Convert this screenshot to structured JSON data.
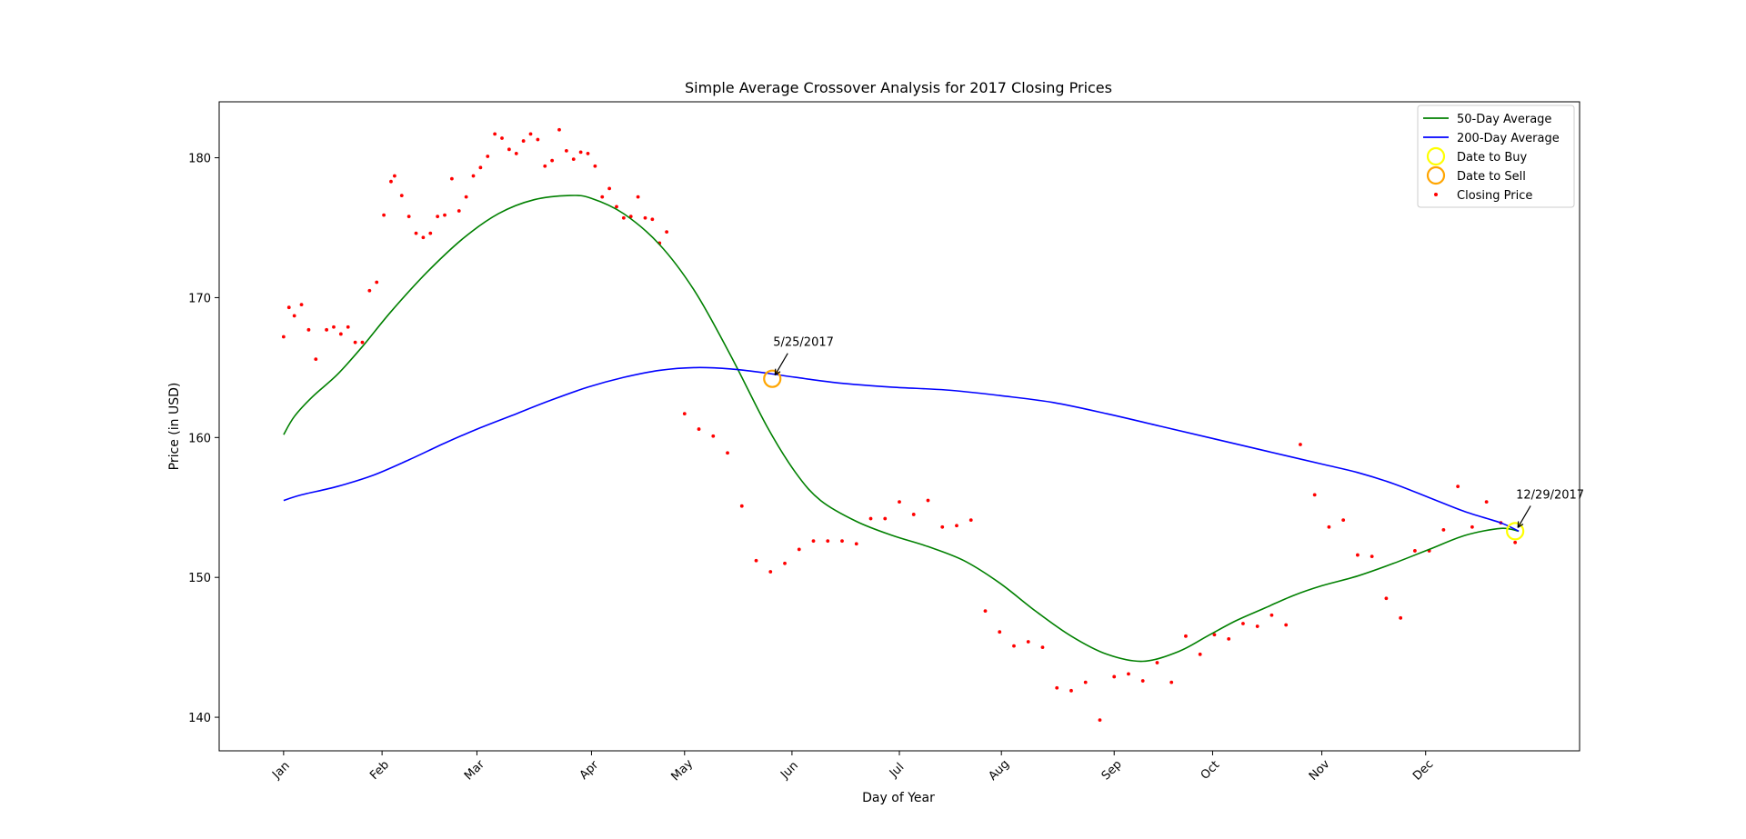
{
  "chart_data": {
    "type": "line",
    "title": "Simple Average Crossover Analysis for 2017 Closing Prices",
    "xlabel": "Day of Year",
    "ylabel": "Price (in USD)",
    "ylim": [
      137.6,
      184.0
    ],
    "xlim": [
      -18,
      362
    ],
    "grid": false,
    "legend_position": "top-right",
    "x_ticks": [
      {
        "label": "Jan",
        "day": 0
      },
      {
        "label": "Feb",
        "day": 27.5
      },
      {
        "label": "Mar",
        "day": 54
      },
      {
        "label": "Apr",
        "day": 86
      },
      {
        "label": "May",
        "day": 112
      },
      {
        "label": "Jun",
        "day": 142
      },
      {
        "label": "Jul",
        "day": 172
      },
      {
        "label": "Aug",
        "day": 200.5
      },
      {
        "label": "Sep",
        "day": 232
      },
      {
        "label": "Oct",
        "day": 259.5
      },
      {
        "label": "Nov",
        "day": 290
      },
      {
        "label": "Dec",
        "day": 319
      }
    ],
    "y_ticks": [
      140,
      150,
      160,
      170,
      180
    ],
    "series": [
      {
        "name": "50-Day Average",
        "color": "#008000",
        "x": [
          0,
          3,
          8,
          15,
          22,
          30,
          40,
          50,
          60,
          70,
          80,
          86,
          95,
          105,
          115,
          125,
          135,
          143,
          150,
          160,
          170,
          180,
          190,
          200,
          210,
          220,
          230,
          240,
          250,
          258,
          266,
          274,
          282,
          290,
          300,
          310,
          320,
          330,
          340,
          345
        ],
        "y": [
          160.2,
          161.5,
          162.9,
          164.5,
          166.5,
          169.0,
          171.8,
          174.2,
          176.0,
          177.0,
          177.3,
          177.1,
          176.0,
          173.8,
          170.4,
          165.8,
          160.8,
          157.5,
          155.5,
          154.0,
          153.0,
          152.2,
          151.2,
          149.6,
          147.6,
          145.8,
          144.5,
          144.0,
          144.7,
          145.8,
          146.9,
          147.8,
          148.7,
          149.4,
          150.1,
          151.0,
          152.0,
          153.0,
          153.5,
          153.3
        ]
      },
      {
        "name": "200-Day Average",
        "color": "#0000ff",
        "x": [
          0,
          5,
          15,
          25,
          35,
          45,
          55,
          65,
          75,
          85,
          95,
          105,
          115,
          125,
          135,
          143,
          155,
          170,
          185,
          200,
          215,
          230,
          245,
          260,
          275,
          290,
          300,
          310,
          320,
          330,
          340,
          345
        ],
        "y": [
          155.5,
          155.9,
          156.5,
          157.3,
          158.4,
          159.6,
          160.7,
          161.7,
          162.7,
          163.6,
          164.3,
          164.8,
          165.0,
          164.9,
          164.6,
          164.3,
          163.9,
          163.6,
          163.4,
          163.0,
          162.5,
          161.7,
          160.8,
          159.9,
          159.0,
          158.1,
          157.5,
          156.7,
          155.7,
          154.7,
          153.9,
          153.3
        ]
      }
    ],
    "closing_prices": {
      "name": "Closing Price",
      "color": "#ff0000",
      "x": [
        0,
        1.5,
        3,
        5,
        7,
        9,
        12,
        14,
        16,
        18,
        20,
        22,
        24,
        26,
        28,
        30,
        31,
        33,
        35,
        37,
        39,
        41,
        43,
        45,
        47,
        49,
        51,
        53,
        55,
        57,
        59,
        61,
        63,
        65,
        67,
        69,
        71,
        73,
        75,
        77,
        79,
        81,
        83,
        85,
        87,
        89,
        91,
        93,
        95,
        97,
        99,
        101,
        103,
        105,
        107,
        112,
        116,
        120,
        124,
        128,
        132,
        136,
        140,
        144,
        148,
        152,
        156,
        160,
        164,
        168,
        172,
        176,
        180,
        184,
        188,
        192,
        196,
        200,
        204,
        208,
        212,
        216,
        220,
        224,
        228,
        232,
        236,
        240,
        244,
        248,
        252,
        256,
        260,
        264,
        268,
        272,
        276,
        280,
        284,
        288,
        292,
        296,
        300,
        304,
        308,
        312,
        316,
        320,
        324,
        328,
        332,
        336,
        340,
        344
      ],
      "y": [
        167.2,
        169.3,
        168.7,
        169.5,
        167.7,
        165.6,
        167.7,
        167.9,
        167.4,
        167.9,
        166.8,
        166.8,
        170.5,
        171.1,
        175.9,
        178.3,
        178.7,
        177.3,
        175.8,
        174.6,
        174.3,
        174.6,
        175.8,
        175.9,
        178.5,
        176.2,
        177.2,
        178.7,
        179.3,
        180.1,
        181.7,
        181.4,
        180.6,
        180.3,
        181.2,
        181.7,
        181.3,
        179.4,
        179.8,
        182.0,
        180.5,
        179.9,
        180.4,
        180.3,
        179.4,
        177.2,
        177.8,
        176.5,
        175.7,
        175.8,
        177.2,
        175.7,
        175.6,
        173.9,
        174.7,
        161.7,
        160.6,
        160.1,
        158.9,
        155.1,
        151.2,
        150.4,
        151.0,
        152.0,
        152.6,
        152.6,
        152.6,
        152.4,
        154.2,
        154.2,
        155.4,
        154.5,
        155.5,
        153.6,
        153.7,
        154.1,
        147.6,
        146.1,
        145.1,
        145.4,
        145.0,
        142.1,
        141.9,
        142.5,
        139.8,
        142.9,
        143.1,
        142.6,
        143.9,
        142.5,
        145.8,
        144.5,
        145.9,
        145.6,
        146.7,
        146.5,
        147.3,
        146.6,
        159.5,
        155.9,
        153.6,
        154.1,
        151.6,
        151.5,
        148.5,
        147.1,
        151.9,
        151.9,
        153.4,
        156.5,
        153.6,
        155.4,
        153.9,
        152.5
      ]
    },
    "markers": [
      {
        "name": "Date to Buy",
        "color": "#ffff00",
        "x": 344,
        "y": 153.3,
        "annotation": "12/29/2017"
      },
      {
        "name": "Date to Sell",
        "color": "#ffa500",
        "x": 136.5,
        "y": 164.2,
        "annotation": "5/25/2017"
      }
    ],
    "legend": [
      {
        "label": "50-Day Average",
        "kind": "line",
        "color": "#008000"
      },
      {
        "label": "200-Day Average",
        "kind": "line",
        "color": "#0000ff"
      },
      {
        "label": "Date to Buy",
        "kind": "circle",
        "color": "#ffff00"
      },
      {
        "label": "Date to Sell",
        "kind": "circle",
        "color": "#ffa500"
      },
      {
        "label": "Closing Price",
        "kind": "dot",
        "color": "#ff0000"
      }
    ]
  }
}
